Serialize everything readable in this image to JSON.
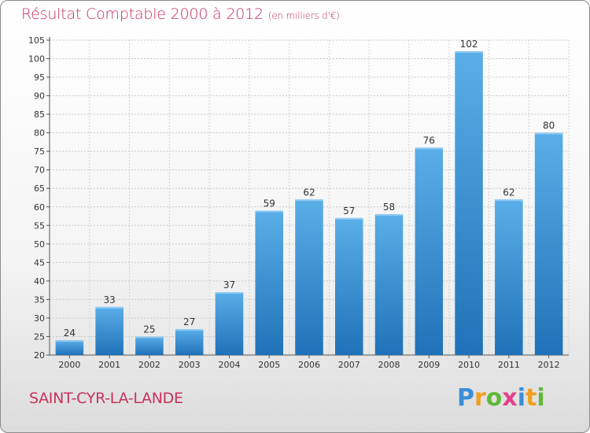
{
  "header": {
    "title": "Résultat Comptable 2000 à 2012",
    "subtitle": "(en milliers d'€)"
  },
  "commune": "SAINT-CYR-LA-LANDE",
  "logo": {
    "letters": [
      "P",
      "r",
      "o",
      "x",
      "i",
      "t",
      "i"
    ]
  },
  "colors": {
    "bar_light": "#5aaee8",
    "bar_dark": "#1f72b8",
    "text_accent": "#c8325a"
  },
  "chart_data": {
    "type": "bar",
    "title": "Résultat Comptable 2000 à 2012",
    "xlabel": "",
    "ylabel": "",
    "categories": [
      "2000",
      "2001",
      "2002",
      "2003",
      "2004",
      "2005",
      "2006",
      "2007",
      "2008",
      "2009",
      "2010",
      "2011",
      "2012"
    ],
    "values": [
      24,
      33,
      25,
      27,
      37,
      59,
      62,
      57,
      58,
      76,
      102,
      62,
      80
    ],
    "ylim": [
      20,
      105
    ],
    "yticks": [
      20,
      25,
      30,
      35,
      40,
      45,
      50,
      55,
      60,
      65,
      70,
      75,
      80,
      85,
      90,
      95,
      100,
      105
    ],
    "grid": true
  }
}
